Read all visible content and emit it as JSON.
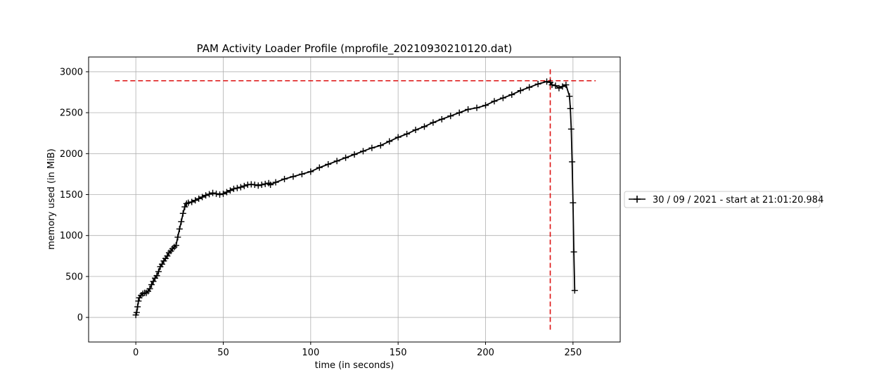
{
  "chart_data": {
    "type": "line",
    "title": "PAM Activity Loader Profile (mprofile_20210930210120.dat)",
    "xlabel": "time (in seconds)",
    "ylabel": "memory used (in MiB)",
    "xlim": [
      -27,
      277
    ],
    "ylim": [
      -300,
      3180
    ],
    "xticks": [
      0,
      50,
      100,
      150,
      200,
      250
    ],
    "yticks": [
      0,
      500,
      1000,
      1500,
      2000,
      2500,
      3000
    ],
    "grid": true,
    "legend_position": "outside-right",
    "series": [
      {
        "name": "30 / 09 / 2021 - start at 21:01:20.984",
        "color": "#000000",
        "marker": "+",
        "x": [
          0,
          0.5,
          1,
          1.5,
          2,
          3,
          4,
          5,
          6,
          7,
          8,
          9,
          10,
          11,
          12,
          13,
          14,
          15,
          16,
          17,
          18,
          19,
          20,
          21,
          22,
          23,
          24,
          25,
          26,
          27,
          28,
          29,
          30,
          32,
          34,
          36,
          38,
          40,
          42,
          44,
          46,
          48,
          50,
          52,
          54,
          56,
          58,
          60,
          62,
          64,
          66,
          68,
          70,
          72,
          74,
          76,
          77,
          80,
          85,
          90,
          95,
          100,
          105,
          110,
          115,
          120,
          125,
          130,
          135,
          140,
          145,
          150,
          155,
          160,
          165,
          170,
          175,
          180,
          185,
          190,
          195,
          200,
          205,
          210,
          215,
          220,
          225,
          230,
          235,
          237,
          238,
          240,
          242,
          244,
          246,
          248,
          248.5,
          249,
          249.5,
          250,
          250.5,
          251
        ],
        "y": [
          30,
          60,
          130,
          200,
          240,
          270,
          290,
          300,
          300,
          320,
          350,
          400,
          440,
          480,
          510,
          560,
          620,
          650,
          690,
          720,
          750,
          790,
          810,
          840,
          860,
          880,
          980,
          1080,
          1170,
          1270,
          1350,
          1390,
          1400,
          1410,
          1430,
          1450,
          1470,
          1490,
          1505,
          1520,
          1510,
          1500,
          1510,
          1530,
          1550,
          1570,
          1580,
          1590,
          1605,
          1620,
          1625,
          1620,
          1610,
          1620,
          1630,
          1640,
          1620,
          1650,
          1690,
          1720,
          1750,
          1780,
          1830,
          1870,
          1910,
          1950,
          1990,
          2030,
          2070,
          2100,
          2150,
          2200,
          2240,
          2290,
          2330,
          2380,
          2420,
          2460,
          2500,
          2540,
          2560,
          2590,
          2640,
          2680,
          2720,
          2770,
          2810,
          2850,
          2880,
          2870,
          2840,
          2830,
          2800,
          2820,
          2840,
          2700,
          2550,
          2300,
          1900,
          1400,
          800,
          330
        ]
      }
    ],
    "reference_lines": [
      {
        "orientation": "horizontal",
        "value": 2890,
        "from": -12,
        "to": 263,
        "color": "#dd1111",
        "style": "dashed"
      },
      {
        "orientation": "vertical",
        "value": 237,
        "from": -150,
        "to": 3040,
        "color": "#dd1111",
        "style": "dashed"
      }
    ]
  }
}
